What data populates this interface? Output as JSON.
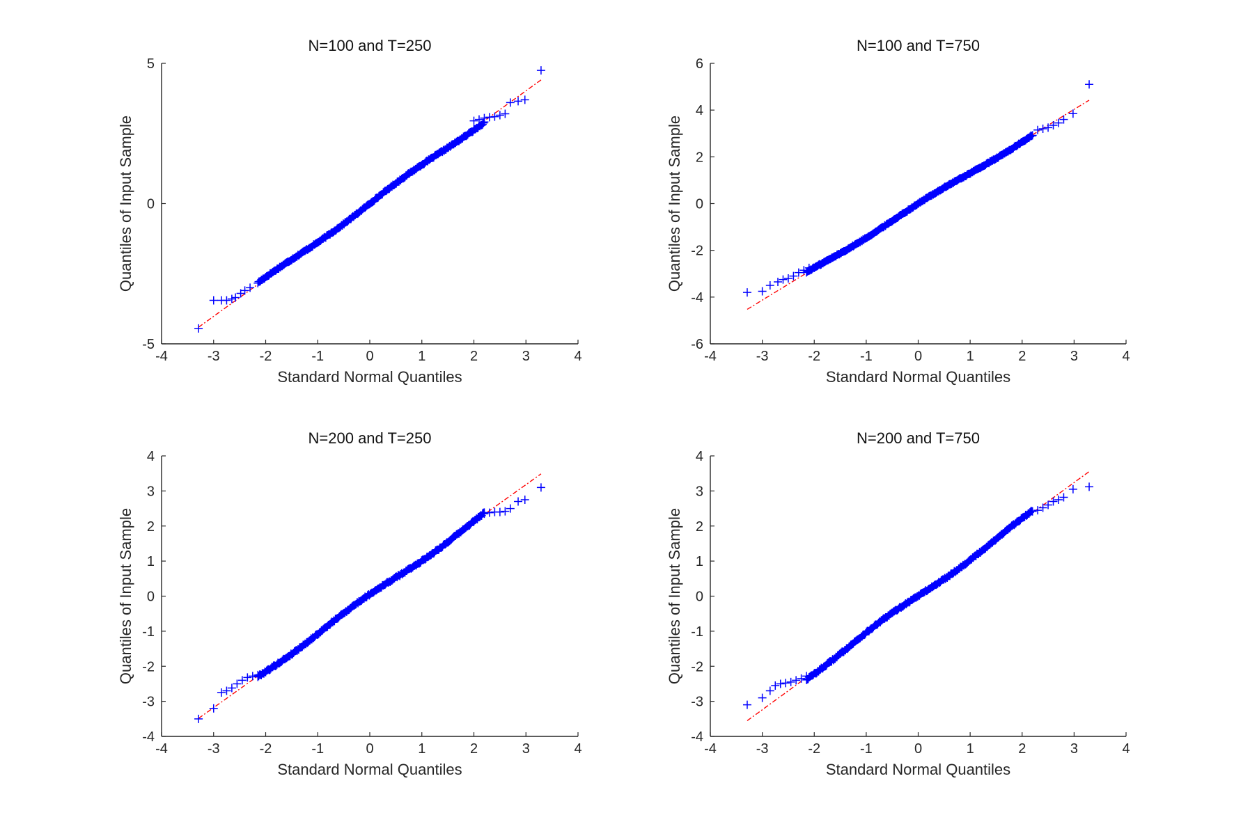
{
  "chart_data": [
    {
      "type": "scatter",
      "title": "N=100 and  T=250",
      "xlabel": "Standard Normal Quantiles",
      "ylabel": "Quantiles of Input Sample",
      "xlim": [
        -4,
        4
      ],
      "ylim": [
        -5,
        5
      ],
      "xticks": [
        -4,
        -3,
        -2,
        -1,
        0,
        1,
        2,
        3,
        4
      ],
      "yticks": [
        -5,
        0,
        5
      ],
      "grid": false,
      "reference_line": {
        "slope": 1.34,
        "intercept": 0.0
      },
      "series": [
        {
          "tail_points": [
            [
              -3.29,
              -4.45
            ],
            [
              -3.0,
              -3.45
            ],
            [
              -2.85,
              -3.45
            ],
            [
              -2.75,
              -3.45
            ],
            [
              -2.65,
              -3.4
            ],
            [
              -2.58,
              -3.35
            ],
            [
              -2.48,
              -3.2
            ],
            [
              -2.4,
              -3.1
            ],
            [
              -2.3,
              -3.0
            ],
            [
              2.0,
              2.95
            ],
            [
              2.1,
              3.0
            ],
            [
              2.2,
              3.05
            ],
            [
              2.3,
              3.08
            ],
            [
              2.4,
              3.1
            ],
            [
              2.5,
              3.15
            ],
            [
              2.6,
              3.2
            ],
            [
              2.7,
              3.6
            ],
            [
              2.85,
              3.65
            ],
            [
              2.98,
              3.7
            ],
            [
              3.29,
              4.75
            ]
          ]
        }
      ]
    },
    {
      "type": "scatter",
      "title": "N=100 and  T=750",
      "xlabel": "Standard Normal Quantiles",
      "ylabel": "Quantiles of Input Sample",
      "xlim": [
        -4,
        4
      ],
      "ylim": [
        -6,
        6
      ],
      "xticks": [
        -4,
        -3,
        -2,
        -1,
        0,
        1,
        2,
        3,
        4
      ],
      "yticks": [
        -6,
        -4,
        -2,
        0,
        2,
        4,
        6
      ],
      "grid": false,
      "reference_line": {
        "slope": 1.36,
        "intercept": -0.05
      },
      "series": [
        {
          "tail_points": [
            [
              -3.29,
              -3.8
            ],
            [
              -3.0,
              -3.75
            ],
            [
              -2.85,
              -3.5
            ],
            [
              -2.7,
              -3.35
            ],
            [
              -2.6,
              -3.25
            ],
            [
              -2.5,
              -3.2
            ],
            [
              -2.4,
              -3.1
            ],
            [
              -2.3,
              -2.95
            ],
            [
              -2.2,
              -2.85
            ],
            [
              -2.1,
              -2.75
            ],
            [
              2.3,
              3.15
            ],
            [
              2.4,
              3.2
            ],
            [
              2.5,
              3.25
            ],
            [
              2.6,
              3.35
            ],
            [
              2.7,
              3.45
            ],
            [
              2.8,
              3.6
            ],
            [
              2.98,
              3.85
            ],
            [
              3.29,
              5.1
            ]
          ]
        }
      ]
    },
    {
      "type": "scatter",
      "title": "N=200 and  T=250",
      "xlabel": "Standard Normal Quantiles",
      "ylabel": "Quantiles of Input Sample",
      "xlim": [
        -4,
        4
      ],
      "ylim": [
        -4,
        4
      ],
      "xticks": [
        -4,
        -3,
        -2,
        -1,
        0,
        1,
        2,
        3,
        4
      ],
      "yticks": [
        -4,
        -3,
        -2,
        -1,
        0,
        1,
        2,
        3,
        4
      ],
      "grid": false,
      "reference_line": {
        "slope": 1.06,
        "intercept": 0.0
      },
      "series": [
        {
          "tail_points": [
            [
              -3.29,
              -3.5
            ],
            [
              -3.0,
              -3.2
            ],
            [
              -2.85,
              -2.75
            ],
            [
              -2.75,
              -2.7
            ],
            [
              -2.65,
              -2.62
            ],
            [
              -2.55,
              -2.5
            ],
            [
              -2.45,
              -2.4
            ],
            [
              -2.35,
              -2.32
            ],
            [
              -2.25,
              -2.28
            ],
            [
              -2.15,
              -2.25
            ],
            [
              2.2,
              2.35
            ],
            [
              2.3,
              2.38
            ],
            [
              2.4,
              2.4
            ],
            [
              2.5,
              2.4
            ],
            [
              2.6,
              2.42
            ],
            [
              2.7,
              2.5
            ],
            [
              2.85,
              2.7
            ],
            [
              2.98,
              2.75
            ],
            [
              3.29,
              3.1
            ]
          ]
        }
      ]
    },
    {
      "type": "scatter",
      "title": "N=200 and  T=750",
      "xlabel": "Standard Normal Quantiles",
      "ylabel": "Quantiles of Input Sample",
      "xlim": [
        -4,
        4
      ],
      "ylim": [
        -4,
        4
      ],
      "xticks": [
        -4,
        -3,
        -2,
        -1,
        0,
        1,
        2,
        3,
        4
      ],
      "yticks": [
        -4,
        -3,
        -2,
        -1,
        0,
        1,
        2,
        3,
        4
      ],
      "grid": false,
      "reference_line": {
        "slope": 1.08,
        "intercept": 0.0
      },
      "series": [
        {
          "tail_points": [
            [
              -3.29,
              -3.1
            ],
            [
              -3.0,
              -2.9
            ],
            [
              -2.85,
              -2.7
            ],
            [
              -2.75,
              -2.55
            ],
            [
              -2.65,
              -2.5
            ],
            [
              -2.55,
              -2.48
            ],
            [
              -2.45,
              -2.45
            ],
            [
              -2.35,
              -2.4
            ],
            [
              -2.25,
              -2.35
            ],
            [
              -2.15,
              -2.28
            ],
            [
              2.3,
              2.45
            ],
            [
              2.4,
              2.52
            ],
            [
              2.5,
              2.6
            ],
            [
              2.6,
              2.7
            ],
            [
              2.7,
              2.75
            ],
            [
              2.8,
              2.82
            ],
            [
              2.98,
              3.05
            ],
            [
              3.29,
              3.12
            ]
          ]
        }
      ]
    }
  ],
  "colors": {
    "marker": "#0000ff",
    "reference_line": "#ff0000",
    "axis": "#262626"
  }
}
